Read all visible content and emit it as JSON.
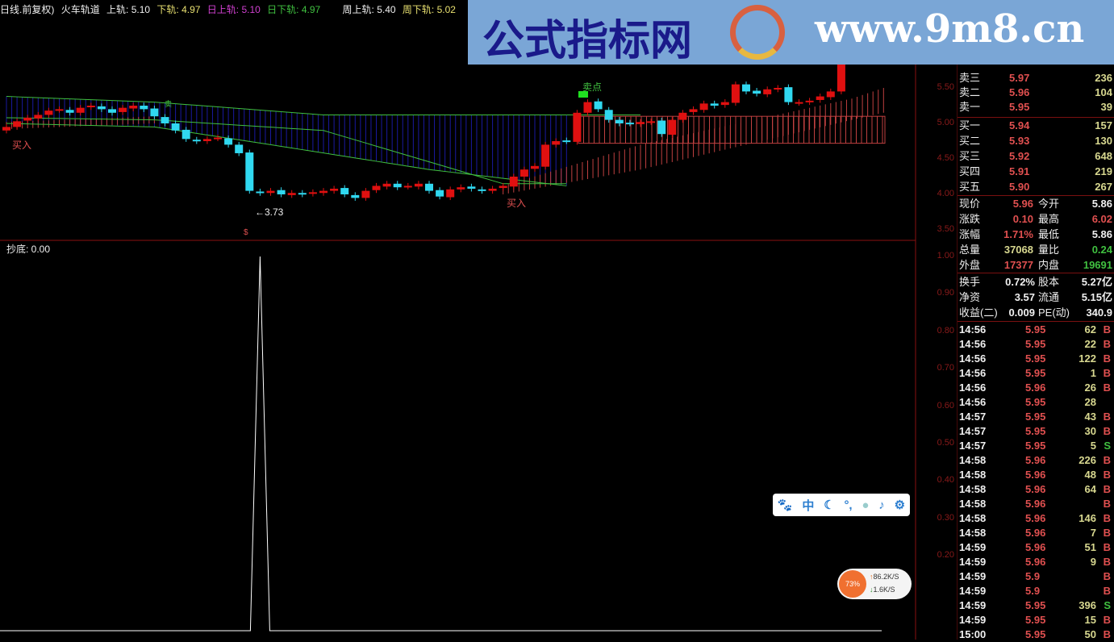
{
  "header": {
    "period": "日线.前复权)",
    "indicator": "火车轨道",
    "upper": "上轨: 5.10",
    "lower": "下轨: 4.97",
    "day_upper": "日上轨: 5.10",
    "day_lower": "日下轨: 4.97",
    "week_upper": "周上轨: 5.40",
    "week_lower": "周下轨: 5.02"
  },
  "watermark": {
    "cn": "公式指标网",
    "url": "www.9m8.cn"
  },
  "markers": {
    "buy": "买入",
    "sell_point": "卖点",
    "sell": "卖",
    "low_label": "←3.73",
    "dollar": "$"
  },
  "sub_indicator": {
    "label": "抄底: 0.00"
  },
  "price_axis": [
    "5.50",
    "5.00",
    "4.50",
    "4.00",
    "3.50"
  ],
  "sub_axis": [
    "1.00",
    "0.90",
    "0.80",
    "0.70",
    "0.60",
    "0.50",
    "0.40",
    "0.30",
    "0.20"
  ],
  "colors": {
    "up": "#e01010",
    "down": "#30d8f0",
    "band_upper": "#1a1aa0",
    "band_lower": "#c04040",
    "line": "#40c040"
  },
  "candles_close": [
    4.95,
    5.03,
    5.08,
    5.12,
    5.18,
    5.2,
    5.15,
    5.22,
    5.25,
    5.2,
    5.15,
    5.22,
    5.25,
    5.2,
    5.1,
    5.0,
    4.9,
    4.78,
    4.75,
    4.78,
    4.8,
    4.7,
    4.58,
    4.05,
    4.02,
    4.05,
    4.0,
    4.02,
    4.0,
    4.03,
    4.05,
    4.08,
    4.0,
    3.95,
    4.05,
    4.12,
    4.15,
    4.1,
    4.12,
    4.15,
    4.05,
    3.97,
    4.07,
    4.1,
    4.08,
    4.05,
    4.08,
    4.12,
    4.25,
    4.35,
    4.4,
    4.7,
    4.75,
    4.75,
    5.15,
    5.3,
    5.2,
    5.05,
    5.0,
    5.0,
    5.02,
    5.03,
    4.85,
    5.05,
    5.15,
    5.2,
    5.28,
    5.25,
    5.3,
    5.55,
    5.45,
    5.42,
    5.48,
    5.5,
    5.3,
    5.3,
    5.32,
    5.38,
    5.45,
    5.85
  ],
  "sub_values_spike_index": 24,
  "quotes": {
    "asks": [
      {
        "label": "卖三",
        "price": "5.97",
        "vol": "236"
      },
      {
        "label": "卖二",
        "price": "5.96",
        "vol": "104"
      },
      {
        "label": "卖一",
        "price": "5.95",
        "vol": "39"
      }
    ],
    "bids": [
      {
        "label": "买一",
        "price": "5.94",
        "vol": "157"
      },
      {
        "label": "买二",
        "price": "5.93",
        "vol": "130"
      },
      {
        "label": "买三",
        "price": "5.92",
        "vol": "648"
      },
      {
        "label": "买四",
        "price": "5.91",
        "vol": "219"
      },
      {
        "label": "买五",
        "price": "5.90",
        "vol": "267"
      }
    ],
    "stats": [
      [
        "现价",
        "5.96",
        "今开",
        "5.86"
      ],
      [
        "涨跌",
        "0.10",
        "最高",
        "6.02"
      ],
      [
        "涨幅",
        "1.71%",
        "最低",
        "5.86"
      ],
      [
        "总量",
        "37068",
        "量比",
        "0.24"
      ],
      [
        "外盘",
        "17377",
        "内盘",
        "19691"
      ]
    ],
    "stats2": [
      [
        "换手",
        "0.72%",
        "股本",
        "5.27亿"
      ],
      [
        "净资",
        "3.57",
        "流通",
        "5.15亿"
      ],
      [
        "收益(二)",
        "0.009",
        "PE(动)",
        "340.9"
      ]
    ]
  },
  "ticks": [
    [
      "14:56",
      "5.95",
      "62",
      "B"
    ],
    [
      "14:56",
      "5.95",
      "22",
      "B"
    ],
    [
      "14:56",
      "5.95",
      "122",
      "B"
    ],
    [
      "14:56",
      "5.95",
      "1",
      "B"
    ],
    [
      "14:56",
      "5.96",
      "26",
      "B"
    ],
    [
      "14:56",
      "5.95",
      "28",
      ""
    ],
    [
      "14:57",
      "5.95",
      "43",
      "B"
    ],
    [
      "14:57",
      "5.95",
      "30",
      "B"
    ],
    [
      "14:57",
      "5.95",
      "5",
      "S"
    ],
    [
      "14:58",
      "5.96",
      "226",
      "B"
    ],
    [
      "14:58",
      "5.96",
      "48",
      "B"
    ],
    [
      "14:58",
      "5.96",
      "64",
      "B"
    ],
    [
      "14:58",
      "5.96",
      "",
      "B"
    ],
    [
      "14:58",
      "5.96",
      "146",
      "B"
    ],
    [
      "14:58",
      "5.96",
      "7",
      "B"
    ],
    [
      "14:59",
      "5.96",
      "51",
      "B"
    ],
    [
      "14:59",
      "5.96",
      "9",
      "B"
    ],
    [
      "14:59",
      "5.9",
      "",
      "B"
    ],
    [
      "14:59",
      "5.9",
      "",
      "B"
    ],
    [
      "14:59",
      "5.95",
      "396",
      "S"
    ],
    [
      "14:59",
      "5.95",
      "15",
      "B"
    ],
    [
      "15:00",
      "5.95",
      "50",
      "B"
    ]
  ],
  "ime": {
    "lang": "中"
  },
  "net": {
    "percent": "73%",
    "up": "86.2K/S",
    "down": "1.6K/S"
  }
}
